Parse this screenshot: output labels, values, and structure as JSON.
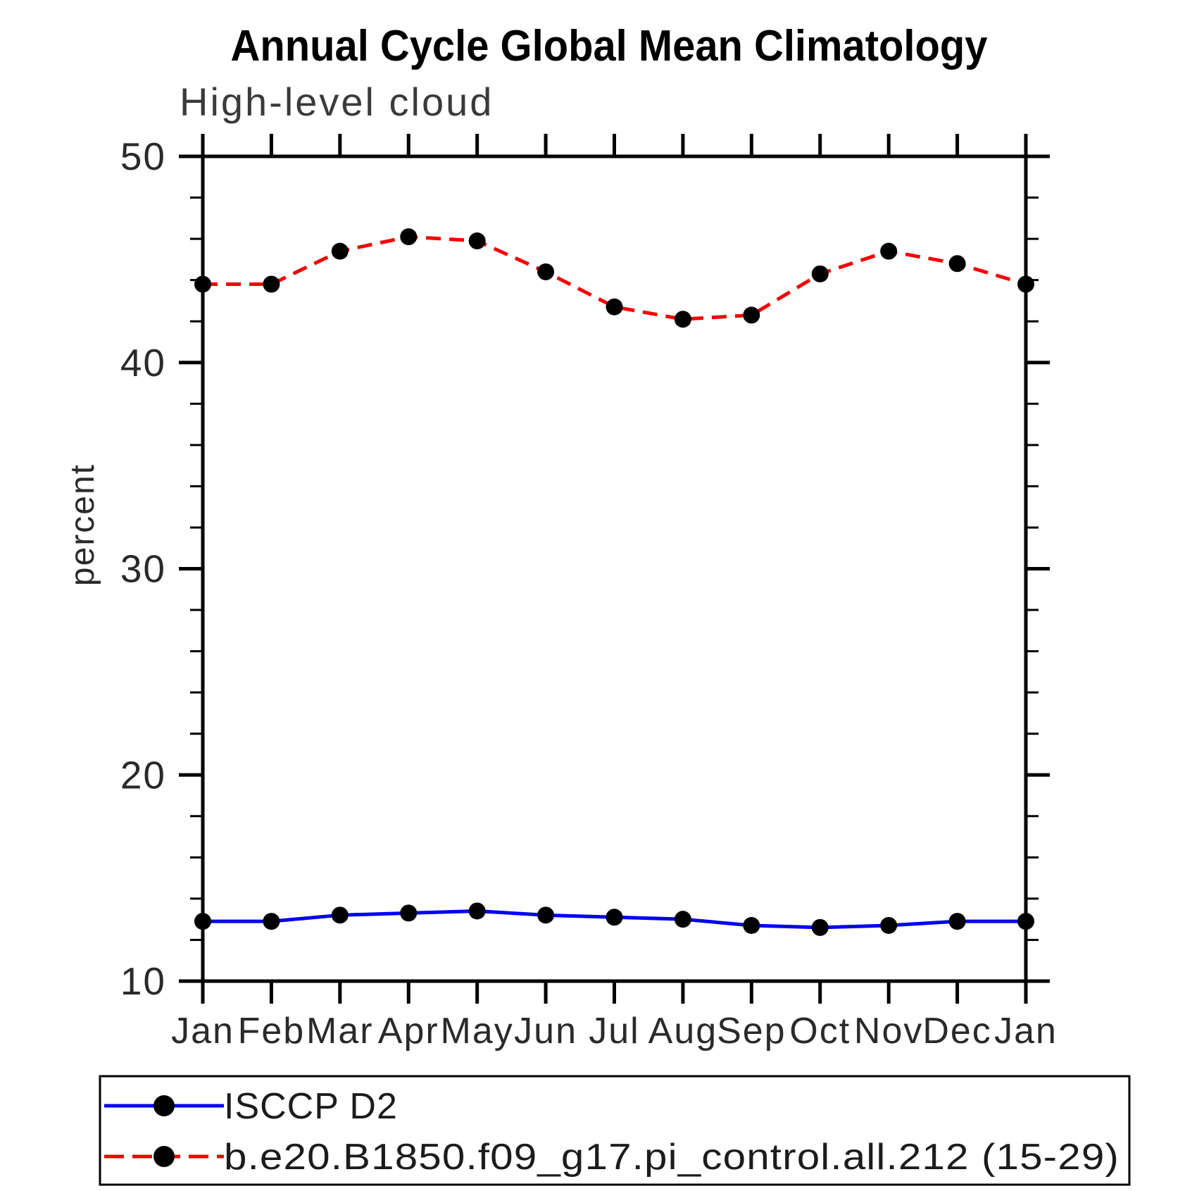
{
  "figure": {
    "title": "Annual Cycle Global Mean Climatology",
    "subtitle": "High-level cloud",
    "ylabel": "percent"
  },
  "chart_data": {
    "type": "line",
    "title": "Annual Cycle Global Mean Climatology",
    "subtitle": "High-level cloud",
    "xlabel": "",
    "ylabel": "percent",
    "categories": [
      "Jan",
      "Feb",
      "Mar",
      "Apr",
      "May",
      "Jun",
      "Jul",
      "Aug",
      "Sep",
      "Oct",
      "Nov",
      "Dec",
      "Jan"
    ],
    "ylim": [
      10,
      50
    ],
    "y_major_ticks": [
      10,
      20,
      30,
      40,
      50
    ],
    "y_minor_step": 2,
    "grid": false,
    "legend_position": "bottom",
    "frame": true,
    "marker_color": "#000000",
    "series": [
      {
        "name": "ISCCP D2",
        "color": "#0000f2",
        "line_style": "solid",
        "marker": "circle",
        "values": [
          12.9,
          12.9,
          13.2,
          13.3,
          13.4,
          13.2,
          13.1,
          13.0,
          12.7,
          12.6,
          12.7,
          12.9,
          12.9
        ]
      },
      {
        "name": "b.e20.B1850.f09_g17.pi_control.all.212 (15-29)",
        "color": "#f50000",
        "line_style": "dashed",
        "marker": "circle",
        "values": [
          43.8,
          43.8,
          45.4,
          46.1,
          45.9,
          44.4,
          42.7,
          42.1,
          42.3,
          44.3,
          45.4,
          44.8,
          43.8
        ]
      }
    ]
  }
}
